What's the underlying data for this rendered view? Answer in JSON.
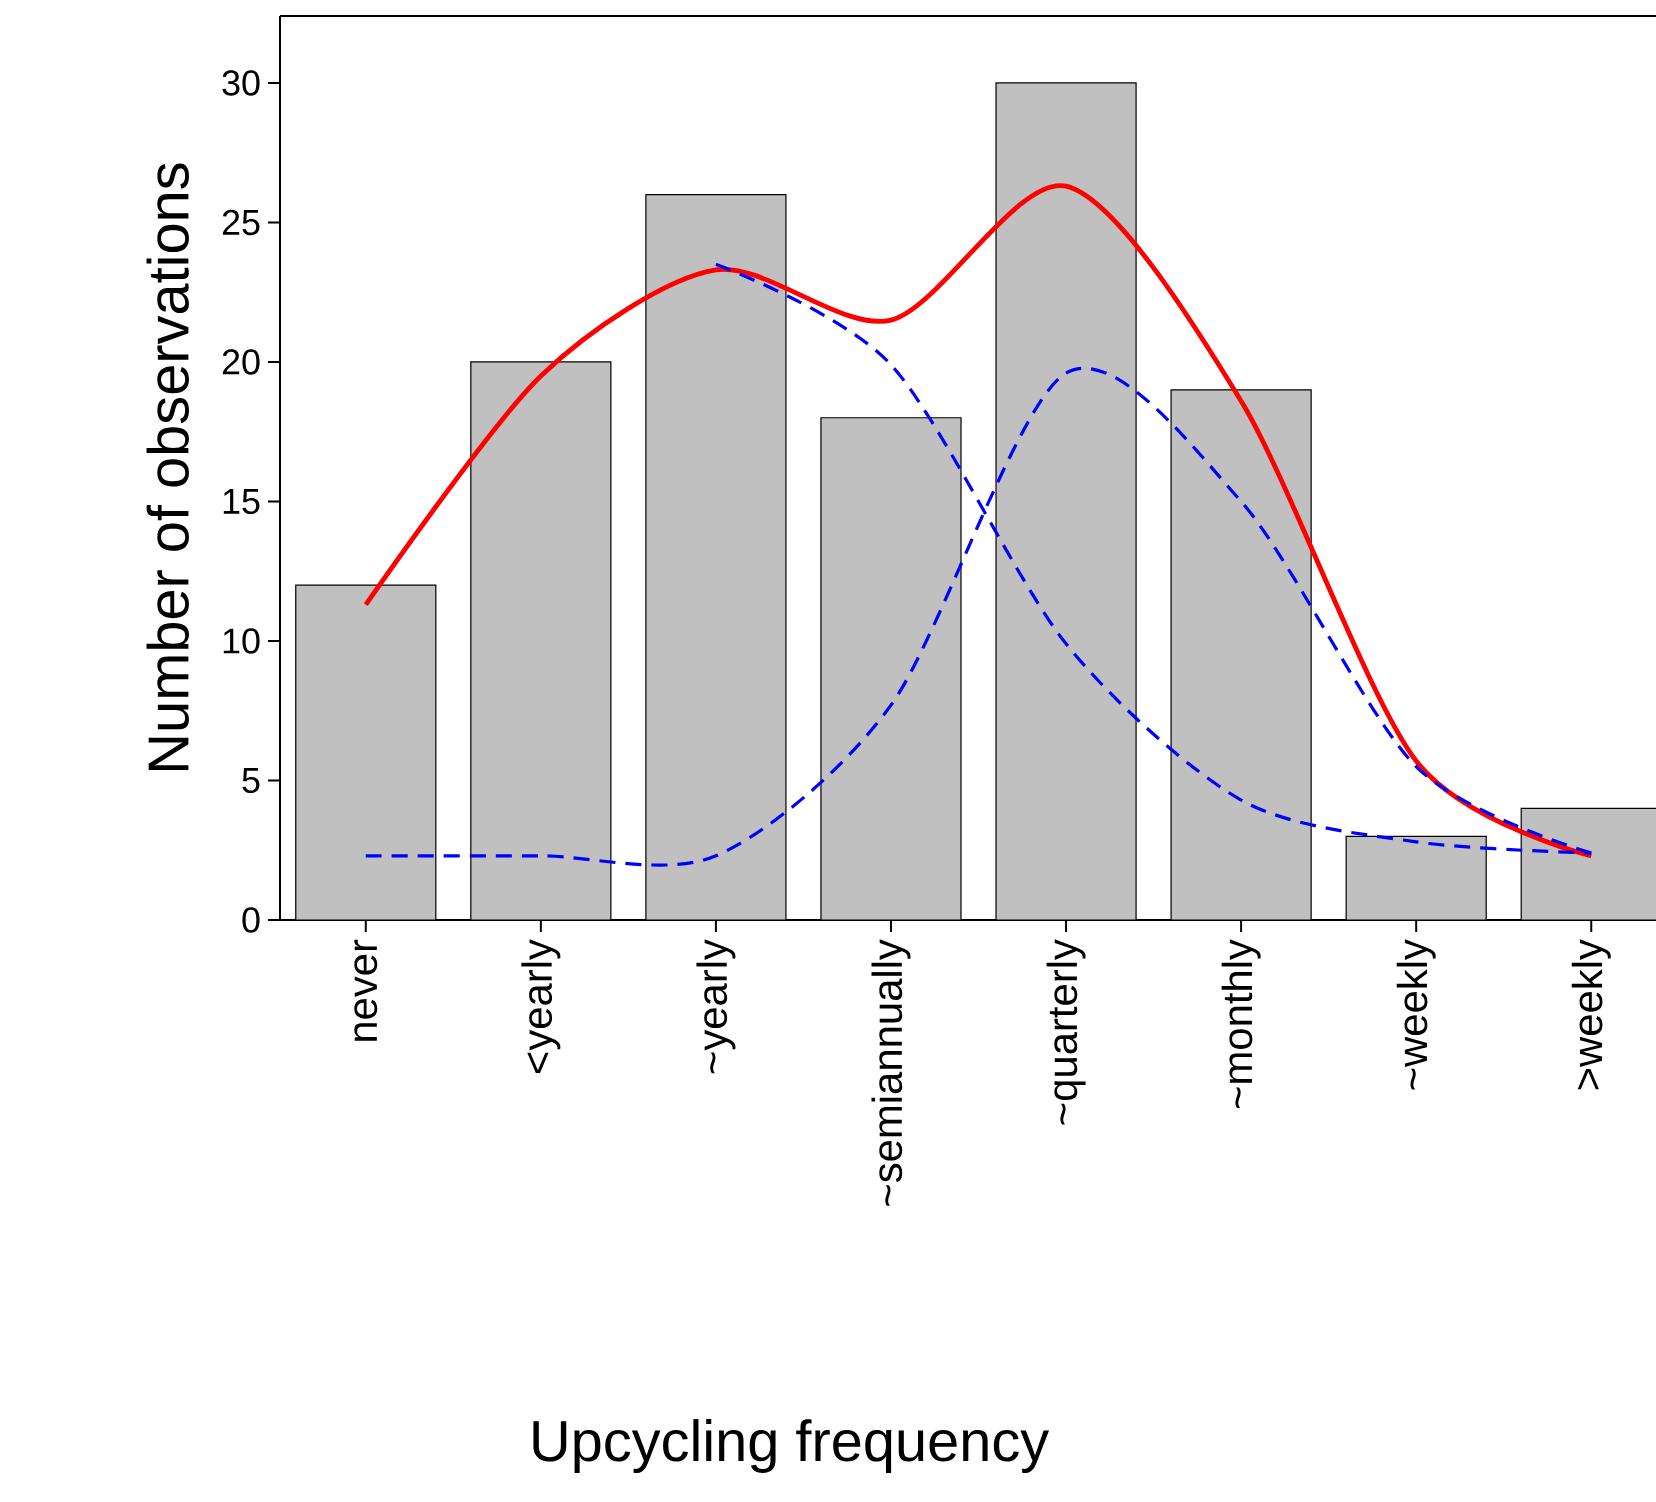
{
  "chart_data": {
    "type": "bar",
    "xlabel": "Upcycling frequency",
    "ylabel": "Number of observations",
    "categories": [
      "never",
      "<yearly",
      "~yearly",
      "~semiannually",
      "~quarterly",
      "~monthly",
      "~weekly",
      ">weekly"
    ],
    "ylim": [
      0,
      32.4
    ],
    "yticks": [
      0,
      5,
      10,
      15,
      20,
      25,
      30
    ],
    "grid": false,
    "marker": "none",
    "series": [
      {
        "color": "#c0c0c0",
        "values": [
          12,
          20,
          26,
          18,
          30,
          19,
          3,
          4
        ]
      },
      {
        "type": "line",
        "color": "#ff0000",
        "line_style": "solid",
        "values": [
          11.3,
          19.5,
          23.3,
          21.5,
          26.3,
          18.6,
          5.7,
          2.3
        ]
      },
      {
        "type": "line",
        "color": "#0000ff",
        "line_style": "dashed",
        "values": [
          2.3,
          2.3,
          2.3,
          7.7,
          19.6,
          15.0,
          5.5,
          2.4
        ]
      },
      {
        "type": "line",
        "color": "#0000ff",
        "line_style": "dashed",
        "values": [
          null,
          null,
          23.5,
          19.9,
          9.9,
          4.3,
          2.8,
          2.4
        ]
      }
    ]
  }
}
